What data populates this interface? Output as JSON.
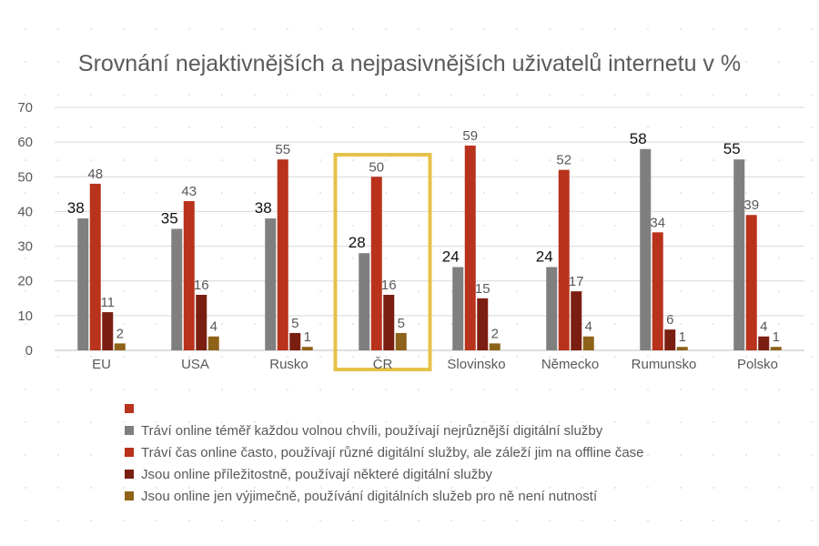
{
  "chart_data": {
    "type": "bar",
    "title": "Srovnání nejaktivnějších a nejpasivnějších uživatelů internetu v  %",
    "xlabel": "",
    "ylabel": "",
    "ylim": [
      0,
      70
    ],
    "yticks": [
      0,
      10,
      20,
      30,
      40,
      50,
      60,
      70
    ],
    "grid": true,
    "legend_position": "bottom",
    "highlight_category": "ČR",
    "highlight_color": "#e6c24a",
    "categories": [
      "EU",
      "USA",
      "Rusko",
      "ČR",
      "Slovinsko",
      "Německo",
      "Rumunsko",
      "Polsko"
    ],
    "series": [
      {
        "name": "Tráví online téměř každou volnou chvíli, používají nejrůznější digitální služby",
        "color": "#7f7f7f",
        "values": [
          38,
          35,
          38,
          28,
          24,
          24,
          58,
          55
        ]
      },
      {
        "name": "Tráví čas online často, používají různé digitální služby, ale záleží jim na offline čase",
        "color": "#b8321c",
        "values": [
          48,
          43,
          55,
          50,
          59,
          52,
          34,
          39
        ]
      },
      {
        "name": "Jsou online příležitostně, používají některé digitální služby",
        "color": "#7b1e12",
        "values": [
          11,
          16,
          5,
          16,
          15,
          17,
          6,
          4
        ]
      },
      {
        "name": "Jsou online jen výjimečně, používání digitálních služeb pro ně není nutností",
        "color": "#8e6218",
        "values": [
          2,
          4,
          1,
          5,
          2,
          4,
          1,
          1
        ]
      }
    ],
    "data_labels": [
      [
        "38",
        "35",
        "38",
        "28",
        "24",
        "24",
        "58",
        "55"
      ],
      [
        "48",
        "43",
        "55",
        "50",
        "59",
        "52",
        "34",
        "39"
      ],
      [
        "11",
        "16",
        "5",
        "16",
        "15",
        "17",
        "6",
        "4"
      ],
      [
        "2",
        "4",
        "1",
        "5",
        "2",
        "4",
        "1",
        "1"
      ]
    ],
    "legend_extra_entry": {
      "label": "",
      "color": "#b8321c"
    }
  }
}
